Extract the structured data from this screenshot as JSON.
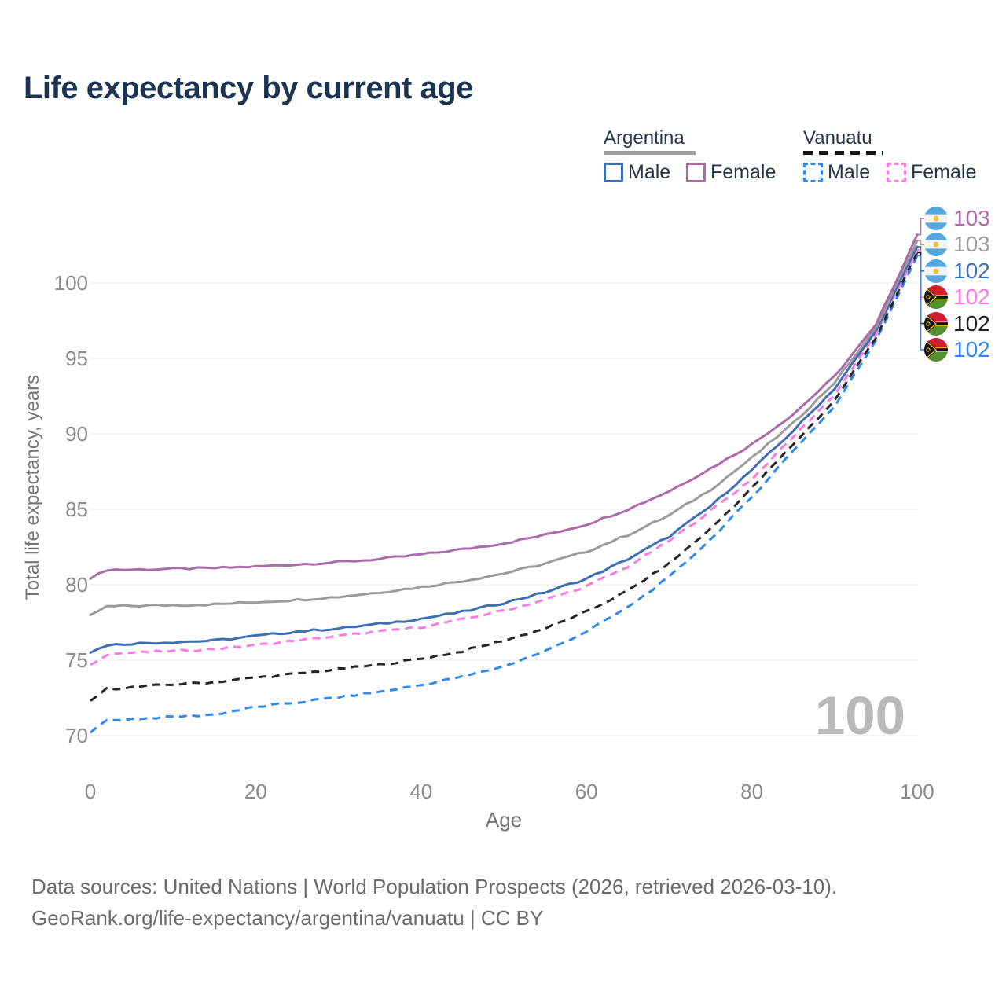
{
  "title": "Life expectancy by current age",
  "legend": {
    "groups": [
      {
        "label": "Argentina",
        "line_style": "solid",
        "underline_color": "#9e9e9e",
        "items": [
          {
            "label": "Male",
            "color": "#3d6fb3",
            "dashed": false
          },
          {
            "label": "Female",
            "color": "#ab6aa8",
            "dashed": false
          }
        ]
      },
      {
        "label": "Vanuatu",
        "line_style": "dashed",
        "underline_color": "#141414",
        "items": [
          {
            "label": "Male",
            "color": "#3089ef",
            "dashed": true
          },
          {
            "label": "Female",
            "color": "#fb7be0",
            "dashed": true
          }
        ]
      }
    ]
  },
  "y_axis": {
    "title": "Total life expectancy, years",
    "ticks": [
      70,
      75,
      80,
      85,
      90,
      95,
      100
    ],
    "range": [
      70,
      100
    ]
  },
  "x_axis": {
    "title": "Age",
    "ticks": [
      0,
      20,
      40,
      60,
      80,
      100
    ],
    "range": [
      0,
      100
    ]
  },
  "watermark_age_counter": "100",
  "end_labels": [
    {
      "value": "103",
      "flag": "argentina",
      "color": "#b168ae",
      "series": "Argentina Female"
    },
    {
      "value": "103",
      "flag": "argentina",
      "color": "#9e9e9e",
      "series": "Argentina Both sexes"
    },
    {
      "value": "102",
      "flag": "argentina",
      "color": "#3d6fb3",
      "series": "Argentina Male"
    },
    {
      "value": "102",
      "flag": "vanuatu",
      "color": "#fb7be0",
      "series": "Vanuatu Female"
    },
    {
      "value": "102",
      "flag": "vanuatu",
      "color": "#1f1f1f",
      "series": "Vanuatu Both sexes"
    },
    {
      "value": "102",
      "flag": "vanuatu",
      "color": "#3089ef",
      "series": "Vanuatu Male"
    }
  ],
  "footer": {
    "line1": "Data sources: United Nations | World Population Prospects (2026, retrieved 2026-03-10).",
    "line2": "GeoRank.org/life-expectancy/argentina/vanuatu | CC BY"
  },
  "chart_data": {
    "type": "line",
    "title": "Life expectancy by current age",
    "xlabel": "Age",
    "ylabel": "Total life expectancy, years",
    "xlim": [
      0,
      100
    ],
    "ylim": [
      68.5,
      104
    ],
    "grid": "horizontal",
    "legend_position": "top-right",
    "x": [
      0,
      2,
      5,
      10,
      15,
      20,
      25,
      30,
      35,
      40,
      45,
      50,
      55,
      60,
      65,
      70,
      75,
      80,
      85,
      90,
      95,
      100
    ],
    "series": [
      {
        "name": "Argentina Female",
        "country": "Argentina",
        "sex": "Female",
        "color": "#ab6aa8",
        "dash": "solid",
        "end_label": 103,
        "values": [
          80.4,
          81.0,
          81.0,
          81.05,
          81.1,
          81.2,
          81.35,
          81.5,
          81.7,
          82.0,
          82.35,
          82.75,
          83.3,
          84.0,
          85.0,
          86.2,
          87.7,
          89.3,
          91.3,
          93.8,
          97.2,
          103.2
        ]
      },
      {
        "name": "Argentina Both sexes",
        "country": "Argentina",
        "sex": "Both",
        "color": "#9b9b9b",
        "dash": "solid",
        "end_label": 103,
        "values": [
          78.0,
          78.55,
          78.6,
          78.65,
          78.7,
          78.85,
          79.0,
          79.2,
          79.5,
          79.85,
          80.25,
          80.75,
          81.4,
          82.2,
          83.3,
          84.6,
          86.3,
          88.4,
          90.7,
          93.4,
          97.0,
          102.8
        ]
      },
      {
        "name": "Argentina Male",
        "country": "Argentina",
        "sex": "Male",
        "color": "#3d6fb3",
        "dash": "solid",
        "end_label": 102,
        "values": [
          75.5,
          76.0,
          76.1,
          76.2,
          76.3,
          76.6,
          76.9,
          77.1,
          77.4,
          77.75,
          78.2,
          78.8,
          79.5,
          80.4,
          81.7,
          83.2,
          85.2,
          87.6,
          90.2,
          93.0,
          96.8,
          102.4
        ]
      },
      {
        "name": "Vanuatu Female",
        "country": "Vanuatu",
        "sex": "Female",
        "color": "#fb7be0",
        "dash": "dashed",
        "end_label": 102,
        "values": [
          74.7,
          75.4,
          75.5,
          75.6,
          75.75,
          76.0,
          76.3,
          76.6,
          76.9,
          77.2,
          77.7,
          78.3,
          79.0,
          79.9,
          81.2,
          82.9,
          84.9,
          87.0,
          89.8,
          92.6,
          96.6,
          102.2
        ]
      },
      {
        "name": "Vanuatu Both sexes",
        "country": "Vanuatu",
        "sex": "Both",
        "color": "#262626",
        "dash": "dashed",
        "end_label": 102,
        "values": [
          72.3,
          73.1,
          73.2,
          73.4,
          73.55,
          73.85,
          74.1,
          74.4,
          74.7,
          75.1,
          75.6,
          76.3,
          77.1,
          78.2,
          79.6,
          81.4,
          83.7,
          86.4,
          89.3,
          92.2,
          96.4,
          102.0
        ]
      },
      {
        "name": "Vanuatu Male",
        "country": "Vanuatu",
        "sex": "Male",
        "color": "#3089ef",
        "dash": "dashed",
        "end_label": 102,
        "values": [
          70.2,
          71.0,
          71.1,
          71.25,
          71.4,
          71.9,
          72.2,
          72.55,
          72.9,
          73.35,
          73.9,
          74.6,
          75.6,
          76.9,
          78.5,
          80.5,
          83.0,
          85.8,
          88.9,
          91.8,
          96.2,
          101.8
        ]
      }
    ]
  }
}
